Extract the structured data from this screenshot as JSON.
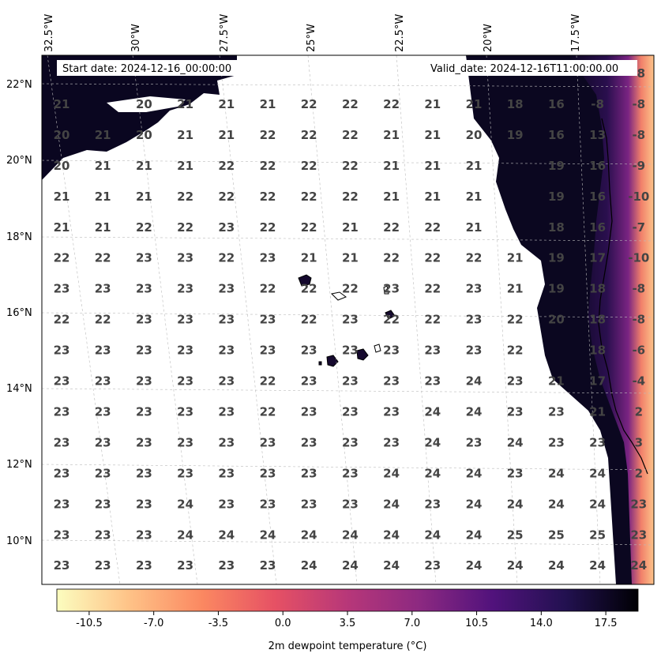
{
  "map": {
    "start_date": "Start date: 2024-12-16_00:00:00",
    "valid_date": "Valid_date: 2024-12-16T11:00:00.00",
    "lon_labels": [
      "32.5°W",
      "30°W",
      "27.5°W",
      "25°W",
      "22.5°W",
      "20°W",
      "17.5°W"
    ],
    "lat_labels": [
      "22°N",
      "20°N",
      "18°N",
      "16°N",
      "14°N",
      "12°N",
      "10°N"
    ],
    "colorbar": {
      "label": "2m dewpoint temperature ($^\\circ$C)",
      "ticks": [
        "-10.5",
        "-7.0",
        "-3.5",
        "0.0",
        "3.5",
        "7.0",
        "10.5",
        "14.0",
        "17.5"
      ],
      "colormap": "magma_r",
      "colors": [
        "#fcfdbf",
        "#fec287",
        "#fb8861",
        "#e65164",
        "#b73779",
        "#8c2981",
        "#51127c",
        "#221150",
        "#000004"
      ]
    },
    "values": [
      [
        "",
        "",
        "",
        "",
        "",
        "",
        "",
        "",
        "",
        "",
        "",
        "",
        "",
        "",
        "-8"
      ],
      [
        "21",
        "",
        "20",
        "21",
        "21",
        "21",
        "22",
        "22",
        "22",
        "21",
        "21",
        "18",
        "16",
        "-8",
        "-8"
      ],
      [
        "20",
        "21",
        "20",
        "21",
        "21",
        "22",
        "22",
        "22",
        "21",
        "21",
        "20",
        "19",
        "16",
        "13",
        "-8"
      ],
      [
        "20",
        "21",
        "21",
        "21",
        "22",
        "22",
        "22",
        "22",
        "21",
        "21",
        "21",
        "",
        "19",
        "16",
        "-9"
      ],
      [
        "21",
        "21",
        "21",
        "22",
        "22",
        "22",
        "22",
        "22",
        "21",
        "21",
        "21",
        "",
        "19",
        "16",
        "-10"
      ],
      [
        "21",
        "21",
        "22",
        "22",
        "23",
        "22",
        "22",
        "21",
        "22",
        "22",
        "21",
        "",
        "18",
        "16",
        "-7"
      ],
      [
        "22",
        "22",
        "23",
        "23",
        "22",
        "23",
        "21",
        "21",
        "22",
        "22",
        "22",
        "21",
        "19",
        "17",
        "-10"
      ],
      [
        "23",
        "23",
        "23",
        "23",
        "23",
        "22",
        "22",
        "22",
        "23",
        "22",
        "23",
        "21",
        "19",
        "18",
        "-8"
      ],
      [
        "22",
        "22",
        "23",
        "23",
        "23",
        "23",
        "22",
        "23",
        "22",
        "22",
        "23",
        "22",
        "20",
        "18",
        "-8"
      ],
      [
        "23",
        "23",
        "23",
        "23",
        "23",
        "23",
        "23",
        "23",
        "23",
        "23",
        "23",
        "22",
        "",
        "18",
        "-6"
      ],
      [
        "23",
        "23",
        "23",
        "23",
        "23",
        "22",
        "23",
        "23",
        "23",
        "23",
        "24",
        "23",
        "21",
        "17",
        "-4"
      ],
      [
        "23",
        "23",
        "23",
        "23",
        "23",
        "22",
        "23",
        "23",
        "23",
        "24",
        "24",
        "23",
        "23",
        "21",
        "2"
      ],
      [
        "23",
        "23",
        "23",
        "23",
        "23",
        "23",
        "23",
        "23",
        "23",
        "24",
        "23",
        "24",
        "23",
        "23",
        "3"
      ],
      [
        "23",
        "23",
        "23",
        "23",
        "23",
        "23",
        "23",
        "23",
        "24",
        "24",
        "24",
        "23",
        "24",
        "24",
        "2"
      ],
      [
        "23",
        "23",
        "23",
        "24",
        "23",
        "23",
        "23",
        "23",
        "24",
        "23",
        "24",
        "24",
        "24",
        "24",
        "23"
      ],
      [
        "23",
        "23",
        "23",
        "24",
        "24",
        "24",
        "24",
        "24",
        "24",
        "24",
        "24",
        "25",
        "25",
        "25",
        "23"
      ],
      [
        "23",
        "23",
        "23",
        "23",
        "23",
        "23",
        "24",
        "24",
        "24",
        "23",
        "24",
        "24",
        "24",
        "24",
        "24"
      ]
    ]
  }
}
